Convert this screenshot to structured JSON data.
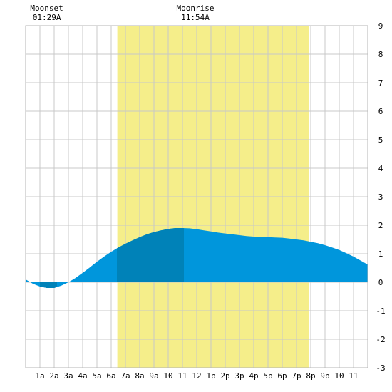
{
  "chart_data": {
    "type": "area",
    "title": "",
    "xlabel": "",
    "ylabel": "",
    "x_range": [
      0,
      24
    ],
    "ylim": [
      -3,
      9
    ],
    "grid": true,
    "x_tick_labels": [
      "1a",
      "2a",
      "3a",
      "4a",
      "5a",
      "6a",
      "7a",
      "8a",
      "9a",
      "10",
      "11",
      "12",
      "1p",
      "2p",
      "3p",
      "4p",
      "5p",
      "6p",
      "7p",
      "8p",
      "9p",
      "10",
      "11"
    ],
    "y_tick_labels": [
      "-3",
      "-2",
      "-1",
      "0",
      "1",
      "2",
      "3",
      "4",
      "5",
      "6",
      "7",
      "8",
      "9"
    ],
    "daylight_band": [
      6.43,
      19.87
    ],
    "annotations": [
      {
        "label": "Moonset",
        "time": "01:29A",
        "hour": 1.48
      },
      {
        "label": "Moonrise",
        "time": "11:54A",
        "hour": 11.9
      }
    ],
    "highlight_range": [
      6.4,
      11.1
    ],
    "series": [
      {
        "x": [
          0,
          0.5,
          1,
          1.5,
          2,
          2.5,
          3,
          3.5,
          4,
          4.5,
          5,
          5.5,
          6,
          6.5,
          7,
          7.5,
          8,
          8.5,
          9,
          9.5,
          10,
          10.5,
          11,
          11.5,
          12,
          12.5,
          13,
          13.5,
          14,
          14.5,
          15,
          15.5,
          16,
          16.5,
          17,
          17.5,
          18,
          18.5,
          19,
          19.5,
          20,
          20.5,
          21,
          21.5,
          22,
          22.5,
          23,
          23.5,
          24
        ],
        "y": [
          0.1,
          -0.05,
          -0.15,
          -0.2,
          -0.2,
          -0.12,
          0.0,
          0.15,
          0.33,
          0.52,
          0.72,
          0.9,
          1.07,
          1.22,
          1.35,
          1.47,
          1.58,
          1.68,
          1.76,
          1.82,
          1.87,
          1.9,
          1.9,
          1.89,
          1.86,
          1.82,
          1.78,
          1.74,
          1.71,
          1.68,
          1.65,
          1.62,
          1.6,
          1.58,
          1.58,
          1.57,
          1.56,
          1.53,
          1.5,
          1.47,
          1.42,
          1.37,
          1.3,
          1.22,
          1.13,
          1.02,
          0.9,
          0.76,
          0.62
        ]
      }
    ]
  },
  "colors": {
    "daylight": "#f5ee8a",
    "tide": "#0096dc",
    "tide_highlight": "#0082b8",
    "grid": "#c8c8c8"
  }
}
